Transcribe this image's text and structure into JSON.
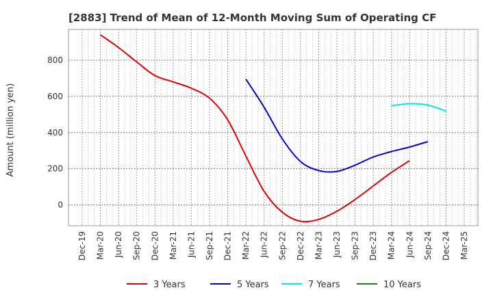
{
  "chart_data": {
    "type": "line",
    "title": "[2883]  Trend of Mean of 12-Month Moving Sum of Operating CF",
    "ylabel": "Amount (million yen)",
    "xlabel": "",
    "ylim": [
      -115,
      970
    ],
    "yticks": [
      0,
      200,
      400,
      600,
      800
    ],
    "x_categories": [
      "Dec-19",
      "Mar-20",
      "Jun-20",
      "Sep-20",
      "Dec-20",
      "Mar-21",
      "Jun-21",
      "Sep-21",
      "Dec-21",
      "Mar-22",
      "Jun-22",
      "Sep-22",
      "Dec-22",
      "Mar-23",
      "Jun-23",
      "Sep-23",
      "Dec-23",
      "Mar-24",
      "Jun-24",
      "Sep-24",
      "Dec-24",
      "Mar-25"
    ],
    "grid": true,
    "legend_position": "bottom",
    "series": [
      {
        "name": "3 Years",
        "color": "#dd0000",
        "start_index": 1,
        "values": [
          940,
          870,
          790,
          715,
          680,
          645,
          590,
          470,
          270,
          75,
          -40,
          -90,
          -80,
          -35,
          30,
          105,
          180,
          245
        ]
      },
      {
        "name": "5 Years",
        "color": "#0000cc",
        "start_index": 9,
        "values": [
          695,
          540,
          365,
          240,
          190,
          185,
          220,
          265,
          295,
          320,
          350
        ]
      },
      {
        "name": "7 Years",
        "color": "#00e5ee",
        "start_index": 17,
        "values": [
          548,
          560,
          552,
          518
        ]
      },
      {
        "name": "10 Years",
        "color": "#1f7a1f",
        "start_index": 0,
        "values": []
      }
    ]
  }
}
